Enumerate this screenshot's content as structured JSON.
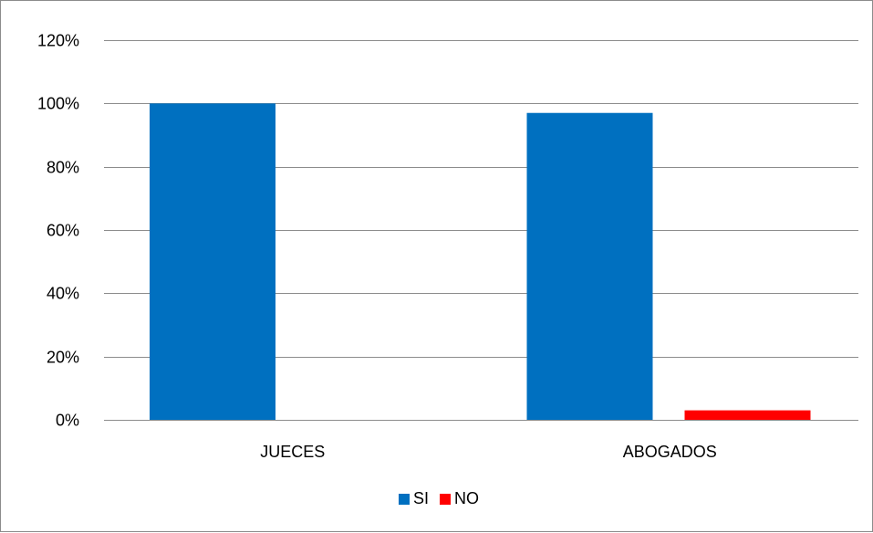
{
  "chart_data": {
    "type": "bar",
    "title": "",
    "xlabel": "",
    "ylabel": "",
    "categories": [
      "JUECES",
      "ABOGADOS"
    ],
    "series": [
      {
        "name": "SI",
        "color": "#0070C0",
        "values": [
          100,
          97
        ]
      },
      {
        "name": "NO",
        "color": "#FF0000",
        "values": [
          0,
          3
        ]
      }
    ],
    "ylim": [
      0,
      120
    ],
    "yticks": [
      0,
      20,
      40,
      60,
      80,
      100,
      120
    ],
    "ytick_labels": [
      "0%",
      "20%",
      "40%",
      "60%",
      "80%",
      "100%",
      "120%"
    ],
    "grid": true,
    "legend_position": "bottom",
    "colors": {
      "gridline": "#8c8c8c",
      "axis": "#8c8c8c"
    }
  }
}
